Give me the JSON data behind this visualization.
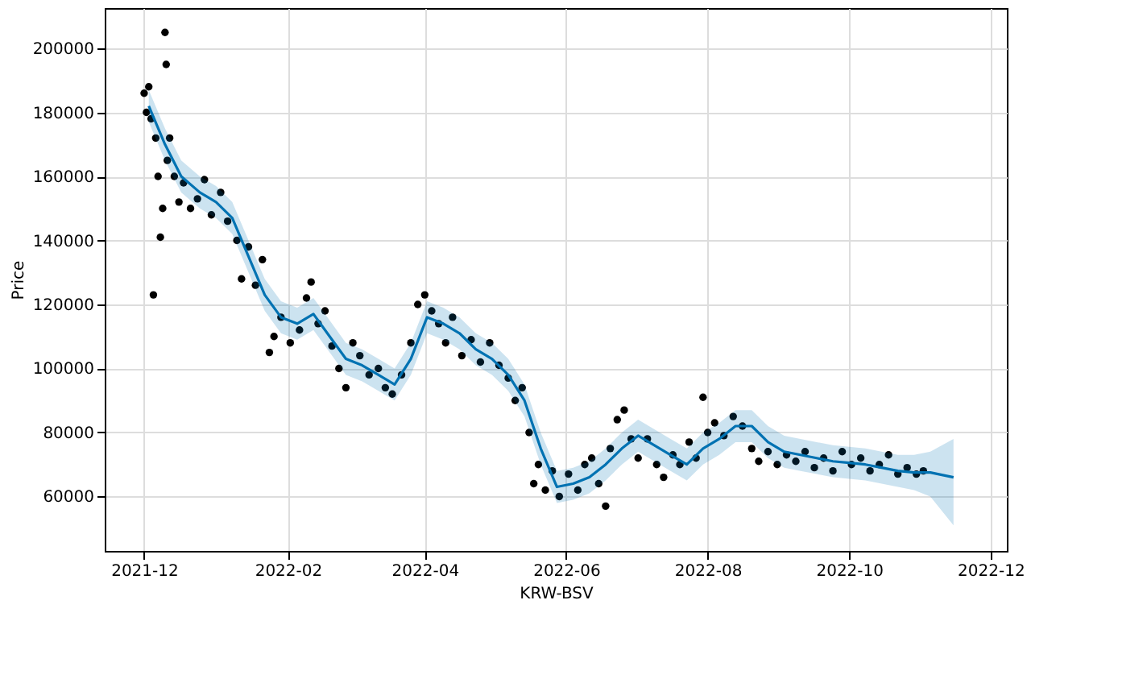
{
  "chart_data": {
    "type": "scatter",
    "xlabel": "KRW-BSV",
    "ylabel": "Price",
    "xlim": [
      "2021-11-14",
      "2022-12-08"
    ],
    "ylim": [
      43000,
      212600
    ],
    "xticks": [
      "2021-12",
      "2022-02",
      "2022-04",
      "2022-06",
      "2022-08",
      "2022-10",
      "2022-12"
    ],
    "yticks": [
      60000,
      80000,
      100000,
      120000,
      140000,
      160000,
      180000,
      200000
    ],
    "grid": true,
    "marker": "circle",
    "series": [
      {
        "color": "#000000",
        "x": [
          "2021-12-01",
          "2021-12-02",
          "2021-12-03",
          "2021-12-04",
          "2021-12-05",
          "2021-12-06",
          "2021-12-07",
          "2021-12-08",
          "2021-12-09",
          "2021-12-10",
          "2021-12-10T12:00",
          "2021-12-11",
          "2021-12-12",
          "2021-12-14",
          "2021-12-16",
          "2021-12-18",
          "2021-12-21",
          "2021-12-24",
          "2021-12-27",
          "2021-12-30",
          "2022-01-03",
          "2022-01-06",
          "2022-01-10",
          "2022-01-12",
          "2022-01-15",
          "2022-01-18",
          "2022-01-21",
          "2022-01-24",
          "2022-01-26",
          "2022-01-29",
          "2022-02-02",
          "2022-02-06",
          "2022-02-09",
          "2022-02-11",
          "2022-02-14",
          "2022-02-17",
          "2022-02-20",
          "2022-02-23",
          "2022-02-26",
          "2022-03-01",
          "2022-03-04",
          "2022-03-08",
          "2022-03-12",
          "2022-03-15",
          "2022-03-18",
          "2022-03-22",
          "2022-03-26",
          "2022-03-29",
          "2022-04-01",
          "2022-04-04",
          "2022-04-07",
          "2022-04-10",
          "2022-04-13",
          "2022-04-17",
          "2022-04-21",
          "2022-04-25",
          "2022-04-29",
          "2022-05-03",
          "2022-05-07",
          "2022-05-10",
          "2022-05-13",
          "2022-05-16",
          "2022-05-18",
          "2022-05-20",
          "2022-05-23",
          "2022-05-26",
          "2022-05-29",
          "2022-06-02",
          "2022-06-06",
          "2022-06-09",
          "2022-06-12",
          "2022-06-15",
          "2022-06-18",
          "2022-06-20",
          "2022-06-23",
          "2022-06-26",
          "2022-06-29",
          "2022-07-02",
          "2022-07-06",
          "2022-07-10",
          "2022-07-13",
          "2022-07-17",
          "2022-07-20",
          "2022-07-24",
          "2022-07-27",
          "2022-07-30",
          "2022-08-01",
          "2022-08-04",
          "2022-08-08",
          "2022-08-12",
          "2022-08-16",
          "2022-08-20",
          "2022-08-23",
          "2022-08-27",
          "2022-08-31",
          "2022-09-04",
          "2022-09-08",
          "2022-09-12",
          "2022-09-16",
          "2022-09-20",
          "2022-09-24",
          "2022-09-28",
          "2022-10-02",
          "2022-10-06",
          "2022-10-10",
          "2022-10-14",
          "2022-10-18",
          "2022-10-22",
          "2022-10-26",
          "2022-10-30",
          "2022-11-02"
        ],
        "values": [
          186000,
          180000,
          188000,
          178000,
          123000,
          172000,
          160000,
          141000,
          150000,
          205000,
          195000,
          165000,
          172000,
          160000,
          152000,
          158000,
          150000,
          153000,
          159000,
          148000,
          155000,
          146000,
          140000,
          128000,
          138000,
          126000,
          134000,
          105000,
          110000,
          116000,
          108000,
          112000,
          122000,
          127000,
          114000,
          118000,
          107000,
          100000,
          94000,
          108000,
          104000,
          98000,
          100000,
          94000,
          92000,
          98000,
          108000,
          120000,
          123000,
          118000,
          114000,
          108000,
          116000,
          104000,
          109000,
          102000,
          108000,
          101000,
          97000,
          90000,
          94000,
          80000,
          64000,
          70000,
          62000,
          68000,
          60000,
          67000,
          62000,
          70000,
          72000,
          64000,
          57000,
          75000,
          84000,
          87000,
          78000,
          72000,
          78000,
          70000,
          66000,
          73000,
          70000,
          77000,
          72000,
          91000,
          80000,
          83000,
          79000,
          85000,
          82000,
          75000,
          71000,
          74000,
          70000,
          73000,
          71000,
          74000,
          69000,
          72000,
          68000,
          74000,
          70000,
          72000,
          68000,
          70000,
          73000,
          67000,
          69000,
          67000,
          68000
        ]
      },
      {
        "type": "line",
        "marker": "none",
        "color": "#0072b2",
        "x": [
          "2021-12-03",
          "2021-12-10",
          "2021-12-17",
          "2021-12-25",
          "2022-01-01",
          "2022-01-08",
          "2022-01-15",
          "2022-01-22",
          "2022-01-29",
          "2022-02-05",
          "2022-02-12",
          "2022-02-19",
          "2022-02-26",
          "2022-03-05",
          "2022-03-12",
          "2022-03-19",
          "2022-03-26",
          "2022-04-02",
          "2022-04-09",
          "2022-04-16",
          "2022-04-23",
          "2022-04-30",
          "2022-05-07",
          "2022-05-14",
          "2022-05-21",
          "2022-05-28",
          "2022-06-04",
          "2022-06-11",
          "2022-06-18",
          "2022-06-25",
          "2022-07-02",
          "2022-07-09",
          "2022-07-16",
          "2022-07-23",
          "2022-07-30",
          "2022-08-06",
          "2022-08-13",
          "2022-08-20",
          "2022-08-27",
          "2022-09-03",
          "2022-09-10",
          "2022-09-17",
          "2022-09-24",
          "2022-10-01",
          "2022-10-08",
          "2022-10-15",
          "2022-10-22",
          "2022-10-29",
          "2022-11-05",
          "2022-11-15"
        ],
        "values": [
          182000,
          170000,
          160000,
          155000,
          152000,
          147000,
          135000,
          123000,
          116000,
          114000,
          117000,
          110000,
          103000,
          101000,
          98000,
          95000,
          103000,
          116000,
          114000,
          111000,
          106000,
          103000,
          98000,
          90000,
          75000,
          63000,
          64000,
          66000,
          70000,
          75000,
          79000,
          76000,
          73000,
          70000,
          75000,
          78000,
          82000,
          82000,
          77000,
          74000,
          73000,
          72000,
          71000,
          70500,
          70000,
          69000,
          68000,
          67500,
          67500,
          66000
        ],
        "lower": [
          177000,
          165000,
          155000,
          150000,
          147000,
          142000,
          130000,
          118000,
          111000,
          109000,
          112000,
          105000,
          98000,
          96000,
          93000,
          90000,
          98000,
          111000,
          109000,
          106000,
          101000,
          98000,
          93000,
          85000,
          70000,
          58000,
          59000,
          61000,
          65000,
          70000,
          74000,
          71000,
          68000,
          65000,
          70000,
          73000,
          77000,
          77000,
          72000,
          69000,
          68000,
          67000,
          66000,
          65500,
          65000,
          64000,
          63000,
          62000,
          60000,
          51000
        ],
        "upper": [
          187000,
          175000,
          165000,
          160000,
          157000,
          152000,
          140000,
          128000,
          121000,
          119000,
          122000,
          115000,
          108000,
          106000,
          103000,
          100000,
          108000,
          121000,
          119000,
          116000,
          111000,
          108000,
          103000,
          95000,
          80000,
          68000,
          69000,
          71000,
          75000,
          80000,
          84000,
          81000,
          78000,
          75000,
          80000,
          83000,
          87000,
          87000,
          82000,
          79000,
          78000,
          77000,
          76000,
          75500,
          75000,
          74000,
          73000,
          73000,
          74000,
          78000
        ]
      }
    ]
  }
}
